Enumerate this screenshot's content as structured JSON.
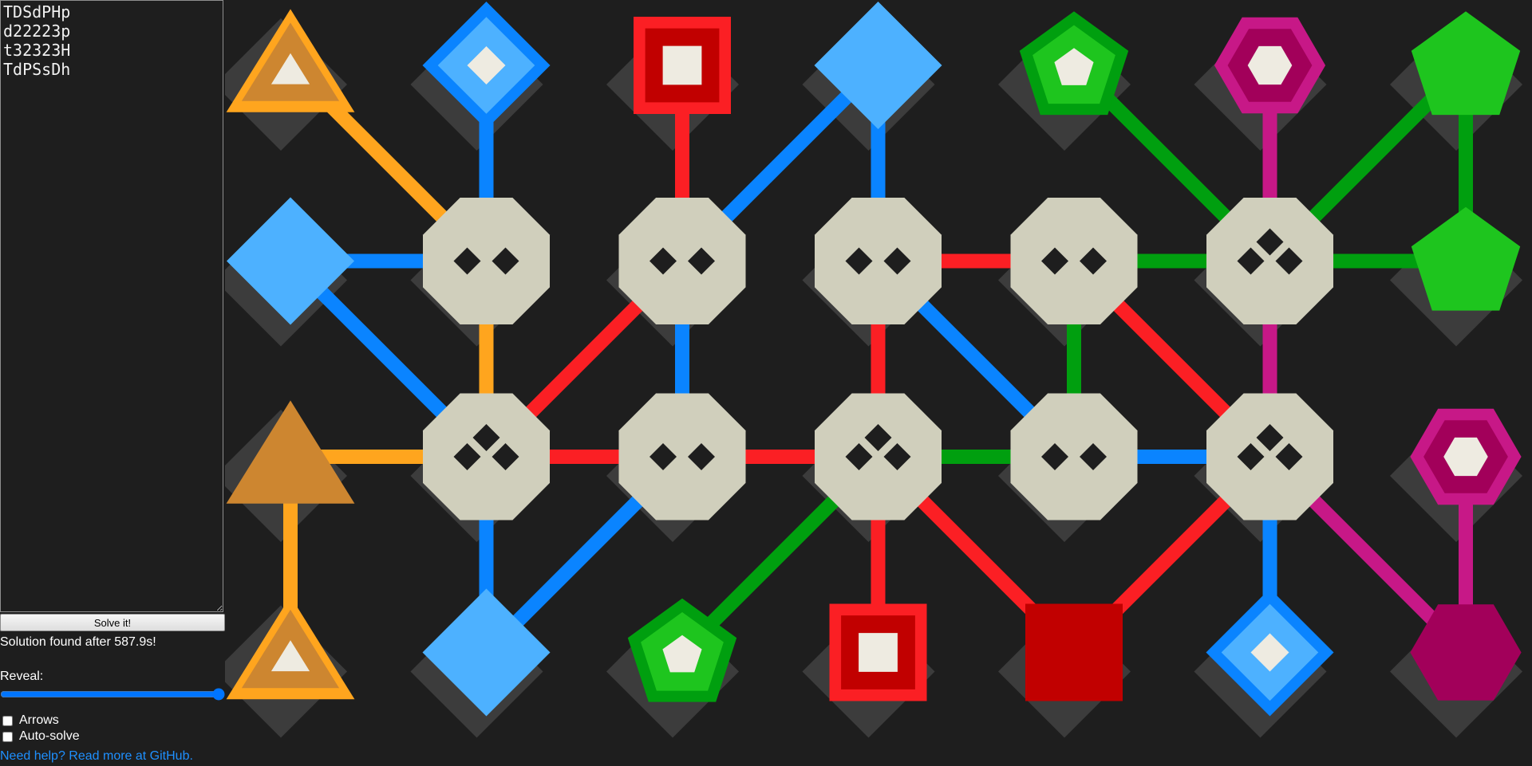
{
  "sidebar": {
    "puzzle_text": "TDSdPHp\nd22223p\nt32323H\nTdPSsDh",
    "solve_button": "Solve it!",
    "status": "Solution found after 587.9s!",
    "reveal_label": "Reveal:",
    "reveal_value": "100",
    "arrows_label": "Arrows",
    "autosolve_label": "Auto-solve",
    "help_link": "Need help? Read more at GitHub."
  },
  "board": {
    "rows": 4,
    "cols": 7,
    "grid": [
      [
        "T",
        "D",
        "S",
        "d",
        "P",
        "H",
        "p"
      ],
      [
        "d",
        "2",
        "2",
        "2",
        "2",
        "3",
        "p"
      ],
      [
        "t",
        "3",
        "2",
        "3",
        "2",
        "3",
        "H"
      ],
      [
        "T",
        "d",
        "P",
        "S",
        "s",
        "D",
        "h"
      ]
    ],
    "colors": {
      "background": "#1e1e1e",
      "shadow": "#3c3c3c",
      "node_fill": "#d0cfbc",
      "node_pip": "#1e1e1e",
      "endpoint_inner": "#eeebe1",
      "orange": "#ffa51e",
      "orange_dark": "#cd8630",
      "blue": "#0a84ff",
      "blue_light": "#4db1ff",
      "red": "#fb1f24",
      "red_dark": "#c10000",
      "green": "#009f0f",
      "green_light": "#1ec51e",
      "magenta": "#c71887",
      "magenta_dark": "#a2005a"
    },
    "links": [
      {
        "a": [
          0,
          0
        ],
        "b": [
          1,
          1
        ],
        "color": "orange"
      },
      {
        "a": [
          0,
          1
        ],
        "b": [
          1,
          1
        ],
        "color": "blue"
      },
      {
        "a": [
          0,
          2
        ],
        "b": [
          1,
          2
        ],
        "color": "red"
      },
      {
        "a": [
          0,
          3
        ],
        "b": [
          1,
          2
        ],
        "color": "blue"
      },
      {
        "a": [
          0,
          3
        ],
        "b": [
          1,
          3
        ],
        "color": "blue"
      },
      {
        "a": [
          0,
          4
        ],
        "b": [
          1,
          5
        ],
        "color": "green"
      },
      {
        "a": [
          0,
          5
        ],
        "b": [
          1,
          5
        ],
        "color": "magenta"
      },
      {
        "a": [
          0,
          6
        ],
        "b": [
          1,
          5
        ],
        "color": "green"
      },
      {
        "a": [
          0,
          6
        ],
        "b": [
          1,
          6
        ],
        "color": "green"
      },
      {
        "a": [
          1,
          0
        ],
        "b": [
          1,
          1
        ],
        "color": "blue"
      },
      {
        "a": [
          1,
          0
        ],
        "b": [
          2,
          1
        ],
        "color": "blue"
      },
      {
        "a": [
          1,
          1
        ],
        "b": [
          2,
          1
        ],
        "color": "orange"
      },
      {
        "a": [
          1,
          2
        ],
        "b": [
          2,
          1
        ],
        "color": "red"
      },
      {
        "a": [
          1,
          2
        ],
        "b": [
          2,
          2
        ],
        "color": "blue"
      },
      {
        "a": [
          1,
          3
        ],
        "b": [
          1,
          4
        ],
        "color": "red"
      },
      {
        "a": [
          1,
          3
        ],
        "b": [
          2,
          3
        ],
        "color": "red"
      },
      {
        "a": [
          1,
          3
        ],
        "b": [
          2,
          4
        ],
        "color": "blue"
      },
      {
        "a": [
          1,
          4
        ],
        "b": [
          1,
          5
        ],
        "color": "green"
      },
      {
        "a": [
          1,
          4
        ],
        "b": [
          2,
          4
        ],
        "color": "green"
      },
      {
        "a": [
          1,
          4
        ],
        "b": [
          2,
          5
        ],
        "color": "red"
      },
      {
        "a": [
          1,
          5
        ],
        "b": [
          1,
          6
        ],
        "color": "green"
      },
      {
        "a": [
          1,
          5
        ],
        "b": [
          2,
          5
        ],
        "color": "magenta"
      },
      {
        "a": [
          2,
          0
        ],
        "b": [
          2,
          1
        ],
        "color": "orange"
      },
      {
        "a": [
          2,
          0
        ],
        "b": [
          3,
          0
        ],
        "color": "orange"
      },
      {
        "a": [
          2,
          1
        ],
        "b": [
          2,
          2
        ],
        "color": "red"
      },
      {
        "a": [
          2,
          1
        ],
        "b": [
          3,
          1
        ],
        "color": "blue"
      },
      {
        "a": [
          2,
          2
        ],
        "b": [
          2,
          3
        ],
        "color": "red"
      },
      {
        "a": [
          2,
          2
        ],
        "b": [
          3,
          1
        ],
        "color": "blue"
      },
      {
        "a": [
          2,
          3
        ],
        "b": [
          2,
          4
        ],
        "color": "green"
      },
      {
        "a": [
          2,
          3
        ],
        "b": [
          3,
          2
        ],
        "color": "green"
      },
      {
        "a": [
          2,
          3
        ],
        "b": [
          3,
          3
        ],
        "color": "red"
      },
      {
        "a": [
          2,
          3
        ],
        "b": [
          3,
          4
        ],
        "color": "red"
      },
      {
        "a": [
          2,
          4
        ],
        "b": [
          2,
          5
        ],
        "color": "blue"
      },
      {
        "a": [
          2,
          5
        ],
        "b": [
          3,
          4
        ],
        "color": "red"
      },
      {
        "a": [
          2,
          5
        ],
        "b": [
          3,
          5
        ],
        "color": "blue"
      },
      {
        "a": [
          2,
          5
        ],
        "b": [
          3,
          6
        ],
        "color": "magenta"
      },
      {
        "a": [
          2,
          6
        ],
        "b": [
          3,
          6
        ],
        "color": "magenta"
      }
    ],
    "pieces": [
      {
        "id": "orange-triangle-ring",
        "shape": "triangle",
        "style": "ring",
        "fill": "orange_dark",
        "ring": "orange",
        "cells": [
          [
            0,
            0
          ],
          [
            3,
            0
          ]
        ]
      },
      {
        "id": "orange-triangle-plain",
        "shape": "triangle",
        "style": "plain",
        "fill": "orange_dark",
        "cells": [
          [
            2,
            0
          ]
        ]
      },
      {
        "id": "blue-diamond-ring",
        "shape": "diamond",
        "style": "ring",
        "fill": "blue_light",
        "ring": "blue",
        "cells": [
          [
            0,
            1
          ],
          [
            3,
            5
          ]
        ]
      },
      {
        "id": "blue-diamond-plain",
        "shape": "diamond",
        "style": "plain",
        "fill": "blue_light",
        "cells": [
          [
            0,
            3
          ],
          [
            1,
            0
          ],
          [
            3,
            1
          ]
        ]
      },
      {
        "id": "red-square-ring",
        "shape": "square",
        "style": "ring",
        "fill": "red_dark",
        "ring": "red",
        "cells": [
          [
            0,
            2
          ],
          [
            3,
            3
          ]
        ]
      },
      {
        "id": "red-square-plain",
        "shape": "square",
        "style": "plain",
        "fill": "red_dark",
        "cells": [
          [
            3,
            4
          ]
        ]
      },
      {
        "id": "green-pentagon-ring",
        "shape": "pentagon",
        "style": "ring",
        "fill": "green_light",
        "ring": "green",
        "cells": [
          [
            0,
            4
          ],
          [
            3,
            2
          ]
        ]
      },
      {
        "id": "green-pentagon-plain",
        "shape": "pentagon",
        "style": "plain",
        "fill": "green_light",
        "cells": [
          [
            0,
            6
          ],
          [
            1,
            6
          ]
        ]
      },
      {
        "id": "magenta-hexagon-ring",
        "shape": "hexagon",
        "style": "ring",
        "fill": "magenta_dark",
        "ring": "magenta",
        "cells": [
          [
            0,
            5
          ],
          [
            2,
            6
          ]
        ]
      },
      {
        "id": "magenta-hexagon-plain",
        "shape": "hexagon",
        "style": "plain",
        "fill": "magenta_dark",
        "cells": [
          [
            3,
            6
          ]
        ]
      }
    ],
    "nodes": [
      {
        "cell": [
          1,
          1
        ],
        "pips": 2
      },
      {
        "cell": [
          1,
          2
        ],
        "pips": 2
      },
      {
        "cell": [
          1,
          3
        ],
        "pips": 2
      },
      {
        "cell": [
          1,
          4
        ],
        "pips": 2
      },
      {
        "cell": [
          1,
          5
        ],
        "pips": 3
      },
      {
        "cell": [
          2,
          1
        ],
        "pips": 3
      },
      {
        "cell": [
          2,
          2
        ],
        "pips": 2
      },
      {
        "cell": [
          2,
          3
        ],
        "pips": 3
      },
      {
        "cell": [
          2,
          4
        ],
        "pips": 2
      },
      {
        "cell": [
          2,
          5
        ],
        "pips": 3
      }
    ]
  }
}
